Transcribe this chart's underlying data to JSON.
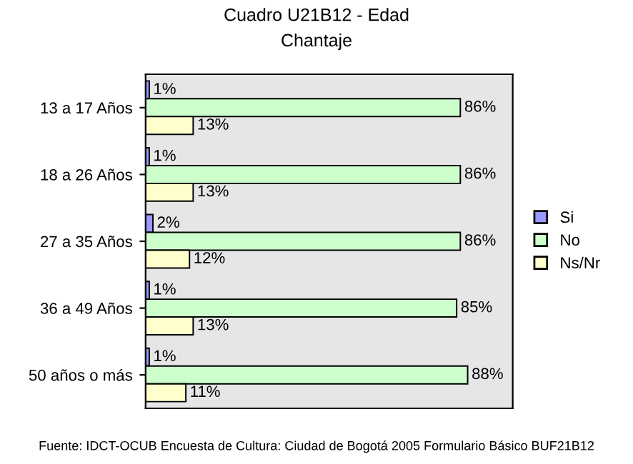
{
  "chart_data": {
    "type": "bar",
    "orientation": "horizontal",
    "title": "Cuadro U21B12 - Edad",
    "subtitle": "Chantaje",
    "categories": [
      "13 a 17 Años",
      "18 a 26 Años",
      "27 a 35 Años",
      "36 a 49 Años",
      "50 años o más"
    ],
    "series": [
      {
        "name": "Si",
        "color": "#9999ff",
        "values": [
          1,
          1,
          2,
          1,
          1
        ],
        "value_labels": [
          "1%",
          "1%",
          "2%",
          "1%",
          "1%"
        ]
      },
      {
        "name": "No",
        "color": "#ccffcc",
        "values": [
          86,
          86,
          86,
          85,
          88
        ],
        "value_labels": [
          "86%",
          "86%",
          "86%",
          "85%",
          "88%"
        ]
      },
      {
        "name": "Ns/Nr",
        "color": "#ffffcc",
        "values": [
          13,
          13,
          12,
          13,
          11
        ],
        "value_labels": [
          "13%",
          "13%",
          "12%",
          "13%",
          "11%"
        ]
      }
    ],
    "tick_labels": "y",
    "grid": false,
    "legend": "right",
    "annotations": [
      "Fuente: IDCT-OCUB Encuesta de Cultura: Ciudad de Bogotá 2005 Formulario Básico BUF21B12"
    ]
  }
}
